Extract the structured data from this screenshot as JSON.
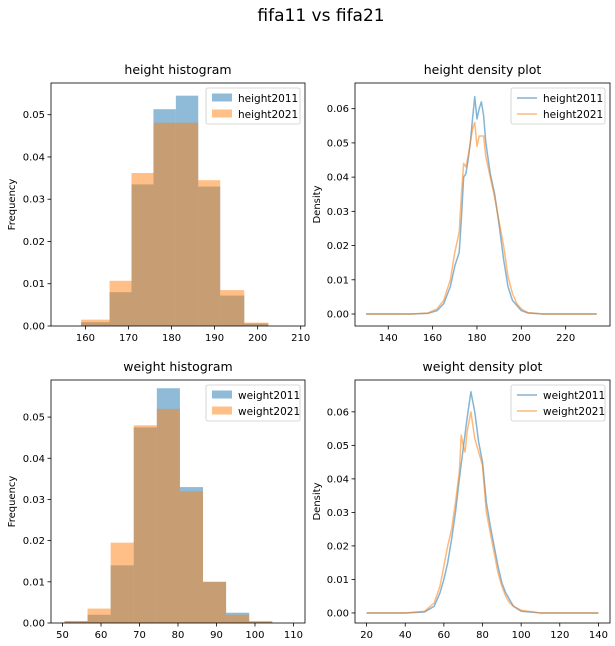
{
  "figure": {
    "suptitle": "fifa11 vs fifa21"
  },
  "colors": {
    "c2011": "#1f77b4",
    "c2021": "#ff7f0e",
    "overlap": "#bf8b62"
  },
  "chart_data": [
    {
      "id": "height_hist",
      "type": "bar",
      "title": "height histogram",
      "xlabel": "",
      "ylabel": "Frequency",
      "xlim": [
        152,
        211
      ],
      "ylim": [
        0,
        0.0575
      ],
      "xticks": [
        160,
        170,
        180,
        190,
        200,
        210
      ],
      "yticks": [
        0.0,
        0.01,
        0.02,
        0.03,
        0.04,
        0.05
      ],
      "ytick_format": 2,
      "legend": "top-right",
      "series": [
        {
          "name": "height2011",
          "color": "#1f77b4",
          "alpha": 0.5,
          "bins": [
            [
              159.0,
              165.6,
              0.0009
            ],
            [
              165.6,
              170.7,
              0.008
            ],
            [
              170.7,
              175.8,
              0.0335
            ],
            [
              175.8,
              181.0,
              0.0513
            ],
            [
              181.0,
              186.2,
              0.0545
            ],
            [
              186.2,
              191.3,
              0.033
            ],
            [
              191.3,
              196.9,
              0.0072
            ],
            [
              196.9,
              202.5,
              0.0006
            ]
          ]
        },
        {
          "name": "height2021",
          "color": "#ff7f0e",
          "alpha": 0.5,
          "bins": [
            [
              159.0,
              165.6,
              0.0015
            ],
            [
              165.6,
              170.7,
              0.0107
            ],
            [
              170.7,
              175.8,
              0.0362
            ],
            [
              175.8,
              181.0,
              0.0481
            ],
            [
              181.0,
              186.2,
              0.0481
            ],
            [
              186.2,
              191.3,
              0.0345
            ],
            [
              191.3,
              196.9,
              0.0085
            ],
            [
              196.9,
              202.5,
              0.0008
            ]
          ]
        }
      ]
    },
    {
      "id": "height_density",
      "type": "line",
      "title": "height density plot",
      "xlabel": "",
      "ylabel": "Density",
      "xlim": [
        125,
        240
      ],
      "ylim": [
        -0.0035,
        0.0675
      ],
      "xticks": [
        140,
        160,
        180,
        200,
        220
      ],
      "yticks": [
        0.0,
        0.01,
        0.02,
        0.03,
        0.04,
        0.05,
        0.06
      ],
      "ytick_format": 2,
      "legend": "top-right",
      "series": [
        {
          "name": "height2011",
          "color": "#1f77b4",
          "alpha": 0.55,
          "points": [
            [
              130,
              0
            ],
            [
              150,
              0
            ],
            [
              158,
              0.0002
            ],
            [
              162,
              0.001
            ],
            [
              165,
              0.003
            ],
            [
              168,
              0.008
            ],
            [
              170,
              0.014
            ],
            [
              172,
              0.018
            ],
            [
              173,
              0.028
            ],
            [
              174,
              0.04
            ],
            [
              175,
              0.041
            ],
            [
              176,
              0.045
            ],
            [
              177,
              0.05
            ],
            [
              178,
              0.057
            ],
            [
              179,
              0.0635
            ],
            [
              180,
              0.057
            ],
            [
              181,
              0.06
            ],
            [
              182,
              0.062
            ],
            [
              183,
              0.058
            ],
            [
              184,
              0.05
            ],
            [
              186,
              0.041
            ],
            [
              188,
              0.035
            ],
            [
              190,
              0.026
            ],
            [
              192,
              0.016
            ],
            [
              194,
              0.008
            ],
            [
              196,
              0.004
            ],
            [
              198,
              0.0025
            ],
            [
              200,
              0.001
            ],
            [
              203,
              0.0003
            ],
            [
              210,
              0
            ],
            [
              234,
              0
            ]
          ]
        },
        {
          "name": "height2021",
          "color": "#ff7f0e",
          "alpha": 0.55,
          "points": [
            [
              130,
              0
            ],
            [
              150,
              0
            ],
            [
              158,
              0.0003
            ],
            [
              162,
              0.0015
            ],
            [
              165,
              0.004
            ],
            [
              168,
              0.01
            ],
            [
              170,
              0.018
            ],
            [
              172,
              0.024
            ],
            [
              173,
              0.035
            ],
            [
              174,
              0.044
            ],
            [
              175,
              0.043
            ],
            [
              176,
              0.046
            ],
            [
              177,
              0.05
            ],
            [
              178,
              0.054
            ],
            [
              179,
              0.056
            ],
            [
              180,
              0.049
            ],
            [
              181,
              0.052
            ],
            [
              182,
              0.052
            ],
            [
              183,
              0.052
            ],
            [
              184,
              0.046
            ],
            [
              186,
              0.04
            ],
            [
              188,
              0.034
            ],
            [
              190,
              0.027
            ],
            [
              192,
              0.02
            ],
            [
              194,
              0.011
            ],
            [
              196,
              0.006
            ],
            [
              198,
              0.003
            ],
            [
              200,
              0.0015
            ],
            [
              203,
              0.0004
            ],
            [
              210,
              0
            ],
            [
              234,
              0
            ]
          ]
        }
      ]
    },
    {
      "id": "weight_hist",
      "type": "bar",
      "title": "weight histogram",
      "xlabel": "",
      "ylabel": "Frequency",
      "xlim": [
        47,
        113
      ],
      "ylim": [
        0,
        0.059
      ],
      "xticks": [
        50,
        60,
        70,
        80,
        90,
        100,
        110
      ],
      "yticks": [
        0.0,
        0.01,
        0.02,
        0.03,
        0.04,
        0.05
      ],
      "ytick_format": 2,
      "legend": "top-right",
      "series": [
        {
          "name": "weight2011",
          "color": "#1f77b4",
          "alpha": 0.5,
          "bins": [
            [
              50.5,
              56.5,
              0.0004
            ],
            [
              56.5,
              62.5,
              0.002
            ],
            [
              62.5,
              68.5,
              0.014
            ],
            [
              68.5,
              74.5,
              0.0475
            ],
            [
              74.5,
              80.5,
              0.057
            ],
            [
              80.5,
              86.5,
              0.033
            ],
            [
              86.5,
              92.5,
              0.01
            ],
            [
              92.5,
              98.5,
              0.0025
            ],
            [
              98.5,
              104.5,
              0.0003
            ]
          ]
        },
        {
          "name": "weight2021",
          "color": "#ff7f0e",
          "alpha": 0.5,
          "bins": [
            [
              50.5,
              56.5,
              0.0005
            ],
            [
              56.5,
              62.5,
              0.0035
            ],
            [
              62.5,
              68.5,
              0.0195
            ],
            [
              68.5,
              74.5,
              0.048
            ],
            [
              74.5,
              80.5,
              0.052
            ],
            [
              80.5,
              86.5,
              0.032
            ],
            [
              86.5,
              92.5,
              0.01
            ],
            [
              92.5,
              98.5,
              0.002
            ],
            [
              98.5,
              104.5,
              0.0005
            ]
          ]
        }
      ]
    },
    {
      "id": "weight_density",
      "type": "line",
      "title": "weight density plot",
      "xlabel": "",
      "ylabel": "Density",
      "xlim": [
        14,
        146
      ],
      "ylim": [
        -0.003,
        0.0695
      ],
      "xticks": [
        20,
        40,
        60,
        80,
        100,
        120,
        140
      ],
      "yticks": [
        0.0,
        0.01,
        0.02,
        0.03,
        0.04,
        0.05,
        0.06
      ],
      "ytick_format": 2,
      "legend": "top-right",
      "series": [
        {
          "name": "weight2011",
          "color": "#1f77b4",
          "alpha": 0.55,
          "points": [
            [
              20,
              0
            ],
            [
              40,
              0
            ],
            [
              50,
              0.0003
            ],
            [
              55,
              0.002
            ],
            [
              58,
              0.006
            ],
            [
              60,
              0.01
            ],
            [
              62,
              0.015
            ],
            [
              64,
              0.022
            ],
            [
              66,
              0.03
            ],
            [
              68,
              0.04
            ],
            [
              70,
              0.049
            ],
            [
              72,
              0.058
            ],
            [
              74,
              0.066
            ],
            [
              76,
              0.06
            ],
            [
              78,
              0.051
            ],
            [
              80,
              0.045
            ],
            [
              82,
              0.033
            ],
            [
              84,
              0.026
            ],
            [
              86,
              0.02
            ],
            [
              88,
              0.014
            ],
            [
              90,
              0.009
            ],
            [
              92,
              0.006
            ],
            [
              94,
              0.004
            ],
            [
              96,
              0.002
            ],
            [
              100,
              0.0005
            ],
            [
              110,
              0
            ],
            [
              140,
              0
            ]
          ]
        },
        {
          "name": "weight2021",
          "color": "#ff7f0e",
          "alpha": 0.55,
          "points": [
            [
              20,
              0
            ],
            [
              40,
              0
            ],
            [
              50,
              0.0005
            ],
            [
              55,
              0.003
            ],
            [
              58,
              0.008
            ],
            [
              60,
              0.014
            ],
            [
              62,
              0.02
            ],
            [
              64,
              0.025
            ],
            [
              66,
              0.033
            ],
            [
              68,
              0.042
            ],
            [
              69,
              0.053
            ],
            [
              70,
              0.05
            ],
            [
              71,
              0.048
            ],
            [
              72,
              0.054
            ],
            [
              74,
              0.06
            ],
            [
              76,
              0.052
            ],
            [
              78,
              0.048
            ],
            [
              80,
              0.044
            ],
            [
              82,
              0.03
            ],
            [
              84,
              0.024
            ],
            [
              86,
              0.018
            ],
            [
              88,
              0.012
            ],
            [
              90,
              0.008
            ],
            [
              92,
              0.005
            ],
            [
              94,
              0.003
            ],
            [
              96,
              0.002
            ],
            [
              100,
              0.0008
            ],
            [
              110,
              0
            ],
            [
              140,
              0
            ]
          ]
        }
      ]
    }
  ]
}
